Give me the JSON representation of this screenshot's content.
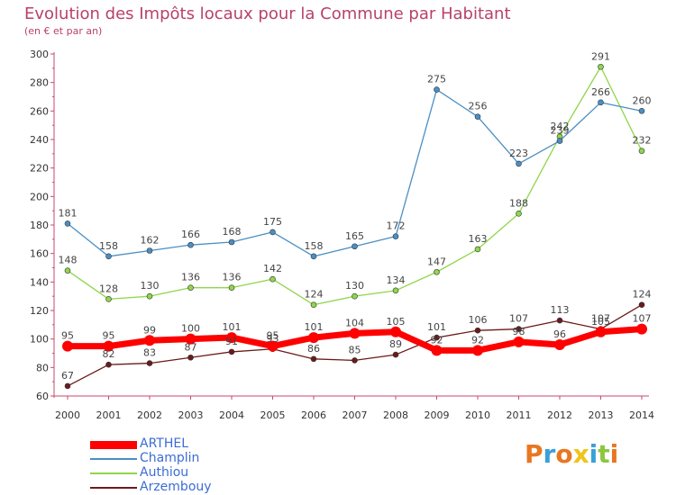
{
  "title": "Evolution des Impôts locaux pour la Commune par Habitant",
  "subtitle": "(en € et par an)",
  "logo": "Proxiti",
  "chart_data": {
    "type": "line",
    "title": "Evolution des Impôts locaux pour la Commune par Habitant",
    "subtitle": "(en € et par an)",
    "xlabel": "",
    "ylabel": "",
    "ylim": [
      60,
      300
    ],
    "yticks": [
      60,
      80,
      100,
      120,
      140,
      160,
      180,
      200,
      220,
      240,
      260,
      280,
      300
    ],
    "grid": false,
    "legend": "bottom-left",
    "x": [
      "2000",
      "2001",
      "2002",
      "2003",
      "2004",
      "2005",
      "2006",
      "2007",
      "2008",
      "2009",
      "2010",
      "2011",
      "2012",
      "2013",
      "2014"
    ],
    "series": [
      {
        "name": "ARTHEL",
        "color": "#ff0000",
        "values": [
          95,
          95,
          99,
          100,
          101,
          95,
          101,
          104,
          105,
          92,
          92,
          98,
          96,
          105,
          107
        ]
      },
      {
        "name": "Champlin",
        "color": "#4a8fc4",
        "values": [
          181,
          158,
          162,
          166,
          168,
          175,
          158,
          165,
          172,
          275,
          256,
          223,
          239,
          266,
          260
        ]
      },
      {
        "name": "Authiou",
        "color": "#8fd64b",
        "values": [
          148,
          128,
          130,
          136,
          136,
          142,
          124,
          130,
          134,
          147,
          163,
          188,
          242,
          291,
          232
        ]
      },
      {
        "name": "Arzembouy",
        "color": "#6b1a1a",
        "values": [
          67,
          82,
          83,
          87,
          91,
          93,
          86,
          85,
          89,
          101,
          106,
          107,
          113,
          107,
          124
        ]
      }
    ]
  }
}
